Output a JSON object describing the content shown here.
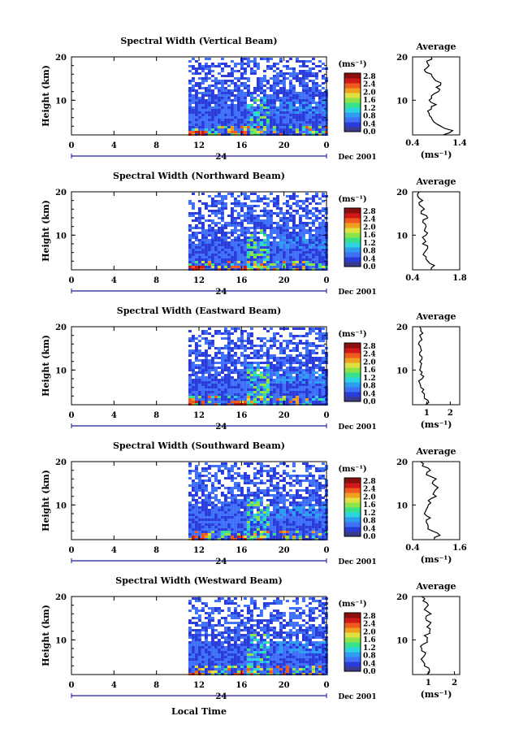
{
  "figure": {
    "xlabel": "Local Time",
    "unit_label": "(ms⁻¹)",
    "date_label": "Dec 2001",
    "colors": {
      "scale": [
        "#3a3a8c",
        "#2a3cd8",
        "#3f70f5",
        "#2e9df0",
        "#2ed3e0",
        "#3be08a",
        "#8fe34a",
        "#e0e040",
        "#f0a020",
        "#f05a20",
        "#d01818",
        "#8a1010"
      ],
      "background_field": "#3a5ee8"
    }
  },
  "chart_data": [
    {
      "type": "heatmap",
      "title": "Spectral Width (Vertical Beam)",
      "ylabel": "Height (km)",
      "xlim": [
        0,
        24
      ],
      "ylim": [
        2,
        20
      ],
      "xticks": [
        "0",
        "4",
        "8",
        "12",
        "16",
        "20",
        "0"
      ],
      "xtick_values": [
        0,
        4,
        8,
        12,
        16,
        20,
        24
      ],
      "day_marker": "24",
      "yticks": [
        "20",
        "10"
      ],
      "ytick_values": [
        20,
        10
      ],
      "data_start_time": 11,
      "colorbar": {
        "range": [
          0.0,
          2.8
        ],
        "ticks": [
          "2.8",
          "2.4",
          "2.0",
          "1.6",
          "1.2",
          "0.8",
          "0.4",
          "0.0"
        ]
      },
      "average_profile": {
        "title": "Average",
        "xlabel": "(ms⁻¹)",
        "xlim": [
          0.4,
          1.4
        ],
        "xticks": [
          "0.4",
          "1.4"
        ],
        "ylim": [
          2,
          20
        ],
        "yticks": [
          "20",
          "10"
        ],
        "height": [
          2,
          3,
          4,
          5,
          6,
          7,
          8,
          9,
          10,
          11,
          12,
          13,
          14,
          15,
          16,
          17,
          18,
          19,
          20
        ],
        "value": [
          1.05,
          1.25,
          1.0,
          0.85,
          0.8,
          0.75,
          0.8,
          0.9,
          0.75,
          0.8,
          0.95,
          0.9,
          1.0,
          0.85,
          0.8,
          0.65,
          0.75,
          0.7,
          0.8
        ]
      }
    },
    {
      "type": "heatmap",
      "title": "Spectral Width (Northward Beam)",
      "ylabel": "Height (km)",
      "xlim": [
        0,
        24
      ],
      "ylim": [
        2,
        20
      ],
      "xticks": [
        "0",
        "4",
        "8",
        "12",
        "16",
        "20",
        "0"
      ],
      "xtick_values": [
        0,
        4,
        8,
        12,
        16,
        20,
        24
      ],
      "day_marker": "24",
      "yticks": [
        "20",
        "10"
      ],
      "ytick_values": [
        20,
        10
      ],
      "data_start_time": 11,
      "colorbar": {
        "range": [
          0.0,
          2.8
        ],
        "ticks": [
          "2.8",
          "2.4",
          "2.0",
          "1.6",
          "1.2",
          "0.8",
          "0.4",
          "0.0"
        ]
      },
      "average_profile": {
        "title": "Average",
        "xlabel": "",
        "xlim": [
          0.4,
          1.8
        ],
        "xticks": [
          "0.4",
          "1.8"
        ],
        "ylim": [
          2,
          20
        ],
        "yticks": [
          "20",
          "10"
        ],
        "height": [
          2,
          3,
          4,
          5,
          6,
          7,
          8,
          9,
          10,
          11,
          12,
          13,
          14,
          15,
          16,
          17,
          18,
          19,
          20
        ],
        "value": [
          0.95,
          1.05,
          0.85,
          0.8,
          0.75,
          0.85,
          0.7,
          0.75,
          0.8,
          0.75,
          0.8,
          0.7,
          0.85,
          0.65,
          0.75,
          0.6,
          0.7,
          0.55,
          0.6
        ]
      }
    },
    {
      "type": "heatmap",
      "title": "Spectral Width (Eastward Beam)",
      "ylabel": "Height (km)",
      "xlim": [
        0,
        24
      ],
      "ylim": [
        2,
        20
      ],
      "xticks": [
        "0",
        "4",
        "8",
        "12",
        "16",
        "20",
        "0"
      ],
      "xtick_values": [
        0,
        4,
        8,
        12,
        16,
        20,
        24
      ],
      "day_marker": "24",
      "yticks": [
        "20",
        "10"
      ],
      "ytick_values": [
        20,
        10
      ],
      "data_start_time": 11,
      "colorbar": {
        "range": [
          0.0,
          2.8
        ],
        "ticks": [
          "2.8",
          "2.4",
          "2.0",
          "1.6",
          "1.2",
          "0.8",
          "0.4",
          "0.0"
        ]
      },
      "average_profile": {
        "title": "Average",
        "xlabel": "(ms⁻¹)",
        "xlim": [
          0.4,
          2.4
        ],
        "xticks": [
          "1",
          "2"
        ],
        "xtick_values": [
          1,
          2
        ],
        "ylim": [
          2,
          20
        ],
        "yticks": [
          "20",
          "10"
        ],
        "height": [
          2,
          3,
          4,
          5,
          6,
          7,
          8,
          9,
          10,
          11,
          12,
          13,
          14,
          15,
          16,
          17,
          18,
          19,
          20
        ],
        "value": [
          0.95,
          1.05,
          0.9,
          0.8,
          0.75,
          0.7,
          0.8,
          0.75,
          0.7,
          0.75,
          0.7,
          0.8,
          0.7,
          0.75,
          0.65,
          0.8,
          0.7,
          0.75,
          0.7
        ]
      }
    },
    {
      "type": "heatmap",
      "title": "Spectral Width (Southward Beam)",
      "ylabel": "Height (km)",
      "xlim": [
        0,
        24
      ],
      "ylim": [
        2,
        20
      ],
      "xticks": [
        "0",
        "4",
        "8",
        "12",
        "16",
        "20",
        "0"
      ],
      "xtick_values": [
        0,
        4,
        8,
        12,
        16,
        20,
        24
      ],
      "day_marker": "24",
      "yticks": [
        "20",
        "10"
      ],
      "ytick_values": [
        20,
        10
      ],
      "data_start_time": 11,
      "colorbar": {
        "range": [
          0.0,
          2.8
        ],
        "ticks": [
          "2.8",
          "2.4",
          "2.0",
          "1.6",
          "1.2",
          "0.8",
          "0.4",
          "0.0"
        ]
      },
      "average_profile": {
        "title": "Average",
        "xlabel": "(ms⁻¹)",
        "xlim": [
          0.4,
          1.6
        ],
        "xticks": [
          "0.4",
          "1.6"
        ],
        "ylim": [
          2,
          20
        ],
        "yticks": [
          "20",
          "10"
        ],
        "height": [
          2,
          3,
          4,
          5,
          6,
          7,
          8,
          9,
          10,
          11,
          12,
          13,
          14,
          15,
          16,
          17,
          18,
          19,
          20
        ],
        "value": [
          0.95,
          1.1,
          0.9,
          0.8,
          0.75,
          0.85,
          0.7,
          0.75,
          0.8,
          0.8,
          1.0,
          0.95,
          1.05,
          0.9,
          1.0,
          0.75,
          0.85,
          0.65,
          0.6
        ]
      }
    },
    {
      "type": "heatmap",
      "title": "Spectral Width (Westward Beam)",
      "ylabel": "Height (km)",
      "xlim": [
        0,
        24
      ],
      "ylim": [
        2,
        20
      ],
      "xticks": [
        "0",
        "4",
        "8",
        "12",
        "16",
        "20",
        "0"
      ],
      "xtick_values": [
        0,
        4,
        8,
        12,
        16,
        20,
        24
      ],
      "day_marker": "24",
      "yticks": [
        "20",
        "10"
      ],
      "ytick_values": [
        20,
        10
      ],
      "data_start_time": 11,
      "colorbar": {
        "range": [
          0.0,
          2.8
        ],
        "ticks": [
          "2.8",
          "2.4",
          "2.0",
          "1.6",
          "1.2",
          "0.8",
          "0.4",
          "0.0"
        ]
      },
      "average_profile": {
        "title": "Average",
        "xlabel": "(ms⁻¹)",
        "xlim": [
          0.4,
          2.2
        ],
        "xticks": [
          "1",
          "2"
        ],
        "xtick_values": [
          1,
          2
        ],
        "ylim": [
          2,
          20
        ],
        "yticks": [
          "20",
          "10"
        ],
        "height": [
          2,
          3,
          4,
          5,
          6,
          7,
          8,
          9,
          10,
          11,
          12,
          13,
          14,
          15,
          16,
          17,
          18,
          19,
          20
        ],
        "value": [
          0.95,
          1.05,
          0.85,
          0.8,
          0.8,
          0.9,
          0.75,
          0.8,
          0.95,
          0.85,
          1.05,
          0.95,
          1.1,
          0.9,
          1.1,
          0.85,
          1.0,
          0.8,
          0.75
        ]
      }
    }
  ]
}
